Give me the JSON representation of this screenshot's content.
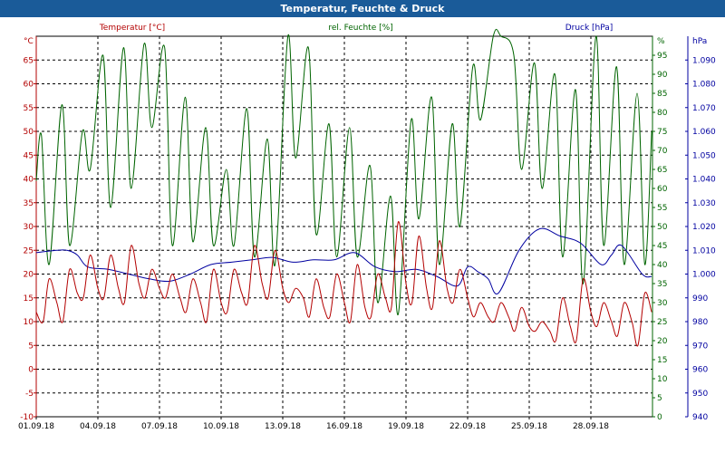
{
  "title": "Temperatur, Feuchte & Druck",
  "chart_data": {
    "type": "line",
    "colors": {
      "temperature": "#b30000",
      "humidity": "#006400",
      "pressure": "#0000a0",
      "title_bar": "#1a5b99"
    },
    "axes": {
      "temperature": {
        "label": "Temperatur [°C]",
        "unit": "°C",
        "ylim": [
          -10,
          70
        ],
        "ticks": [
          -10,
          -5,
          0,
          5,
          10,
          15,
          20,
          25,
          30,
          35,
          40,
          45,
          50,
          55,
          60,
          65
        ]
      },
      "humidity": {
        "label": "rel. Feuchte [%]",
        "unit": "%",
        "ylim": [
          0,
          100
        ],
        "ticks": [
          0,
          5,
          10,
          15,
          20,
          25,
          30,
          35,
          40,
          45,
          50,
          55,
          60,
          65,
          70,
          75,
          80,
          85,
          90,
          95
        ]
      },
      "pressure": {
        "label": "Druck [hPa]",
        "unit": "hPa",
        "ylim": [
          940,
          1100
        ],
        "ticks": [
          940,
          950,
          960,
          970,
          980,
          990,
          1000,
          1010,
          1020,
          1030,
          1040,
          1050,
          1060,
          1070,
          1080,
          1090
        ],
        "tick_labels": [
          "940",
          "950",
          "960",
          "970",
          "980",
          "990",
          "1.000",
          "1.010",
          "1.020",
          "1.030",
          "1.040",
          "1.050",
          "1.060",
          "1.070",
          "1.080",
          "1.090"
        ]
      }
    },
    "x": {
      "range": [
        "2018-09-01",
        "2018-10-01"
      ],
      "tick_dates": [
        "2018-09-01",
        "2018-09-04",
        "2018-09-07",
        "2018-09-10",
        "2018-09-13",
        "2018-09-16",
        "2018-09-19",
        "2018-09-22",
        "2018-09-25",
        "2018-09-28"
      ],
      "tick_labels": [
        "01.09.18",
        "04.09.18",
        "07.09.18",
        "10.09.18",
        "13.09.18",
        "16.09.18",
        "19.09.18",
        "22.09.18",
        "25.09.18",
        "28.09.18"
      ]
    },
    "grid": true,
    "series": [
      {
        "name": "Temperatur [°C]",
        "axis": "temperature",
        "points": [
          [
            "2018-09-01 00:00",
            12
          ],
          [
            "2018-09-01 08:00",
            10
          ],
          [
            "2018-09-01 15:00",
            19
          ],
          [
            "2018-09-02 00:00",
            14
          ],
          [
            "2018-09-02 07:00",
            10
          ],
          [
            "2018-09-02 15:00",
            21
          ],
          [
            "2018-09-03 00:00",
            16
          ],
          [
            "2018-09-03 07:00",
            15
          ],
          [
            "2018-09-03 15:00",
            24
          ],
          [
            "2018-09-04 00:00",
            17
          ],
          [
            "2018-09-04 07:00",
            15
          ],
          [
            "2018-09-04 15:00",
            24
          ],
          [
            "2018-09-05 00:00",
            17
          ],
          [
            "2018-09-05 07:00",
            14
          ],
          [
            "2018-09-05 15:00",
            26
          ],
          [
            "2018-09-06 00:00",
            18
          ],
          [
            "2018-09-06 07:00",
            15
          ],
          [
            "2018-09-06 15:00",
            21
          ],
          [
            "2018-09-07 00:00",
            17
          ],
          [
            "2018-09-07 07:00",
            15
          ],
          [
            "2018-09-07 15:00",
            20
          ],
          [
            "2018-09-08 00:00",
            15
          ],
          [
            "2018-09-08 07:00",
            12
          ],
          [
            "2018-09-08 15:00",
            19
          ],
          [
            "2018-09-09 00:00",
            14
          ],
          [
            "2018-09-09 07:00",
            10
          ],
          [
            "2018-09-09 15:00",
            21
          ],
          [
            "2018-09-10 00:00",
            14
          ],
          [
            "2018-09-10 07:00",
            12
          ],
          [
            "2018-09-10 15:00",
            21
          ],
          [
            "2018-09-11 00:00",
            16
          ],
          [
            "2018-09-11 07:00",
            14
          ],
          [
            "2018-09-11 15:00",
            26
          ],
          [
            "2018-09-12 00:00",
            18
          ],
          [
            "2018-09-12 07:00",
            15
          ],
          [
            "2018-09-12 15:00",
            25
          ],
          [
            "2018-09-13 00:00",
            17
          ],
          [
            "2018-09-13 07:00",
            14
          ],
          [
            "2018-09-13 15:00",
            17
          ],
          [
            "2018-09-14 00:00",
            15
          ],
          [
            "2018-09-14 07:00",
            11
          ],
          [
            "2018-09-14 15:00",
            19
          ],
          [
            "2018-09-15 00:00",
            13
          ],
          [
            "2018-09-15 07:00",
            11
          ],
          [
            "2018-09-15 15:00",
            20
          ],
          [
            "2018-09-16 00:00",
            14
          ],
          [
            "2018-09-16 07:00",
            10
          ],
          [
            "2018-09-16 15:00",
            22
          ],
          [
            "2018-09-17 00:00",
            13
          ],
          [
            "2018-09-17 07:00",
            11
          ],
          [
            "2018-09-17 15:00",
            20
          ],
          [
            "2018-09-18 00:00",
            15
          ],
          [
            "2018-09-18 07:00",
            13
          ],
          [
            "2018-09-18 15:00",
            31
          ],
          [
            "2018-09-19 00:00",
            18
          ],
          [
            "2018-09-19 07:00",
            14
          ],
          [
            "2018-09-19 15:00",
            28
          ],
          [
            "2018-09-20 00:00",
            17
          ],
          [
            "2018-09-20 07:00",
            13
          ],
          [
            "2018-09-20 15:00",
            27
          ],
          [
            "2018-09-21 00:00",
            17
          ],
          [
            "2018-09-21 07:00",
            14
          ],
          [
            "2018-09-21 15:00",
            21
          ],
          [
            "2018-09-22 00:00",
            15
          ],
          [
            "2018-09-22 07:00",
            11
          ],
          [
            "2018-09-22 15:00",
            14
          ],
          [
            "2018-09-23 00:00",
            11
          ],
          [
            "2018-09-23 07:00",
            10
          ],
          [
            "2018-09-23 15:00",
            14
          ],
          [
            "2018-09-24 00:00",
            11
          ],
          [
            "2018-09-24 07:00",
            8
          ],
          [
            "2018-09-24 15:00",
            13
          ],
          [
            "2018-09-25 00:00",
            9
          ],
          [
            "2018-09-25 07:00",
            8
          ],
          [
            "2018-09-25 15:00",
            10
          ],
          [
            "2018-09-26 00:00",
            8
          ],
          [
            "2018-09-26 07:00",
            6
          ],
          [
            "2018-09-26 15:00",
            15
          ],
          [
            "2018-09-27 00:00",
            9
          ],
          [
            "2018-09-27 07:00",
            6
          ],
          [
            "2018-09-27 15:00",
            19
          ],
          [
            "2018-09-28 00:00",
            12
          ],
          [
            "2018-09-28 07:00",
            9
          ],
          [
            "2018-09-28 15:00",
            14
          ],
          [
            "2018-09-29 00:00",
            10
          ],
          [
            "2018-09-29 07:00",
            7
          ],
          [
            "2018-09-29 15:00",
            14
          ],
          [
            "2018-09-30 00:00",
            10
          ],
          [
            "2018-09-30 07:00",
            5
          ],
          [
            "2018-09-30 15:00",
            16
          ],
          [
            "2018-09-30 23:00",
            12
          ]
        ]
      },
      {
        "name": "rel. Feuchte [%]",
        "axis": "humidity",
        "points": [
          [
            "2018-09-01 00:00",
            62
          ],
          [
            "2018-09-01 06:00",
            74
          ],
          [
            "2018-09-01 15:00",
            40
          ],
          [
            "2018-09-02 06:00",
            82
          ],
          [
            "2018-09-02 15:00",
            45
          ],
          [
            "2018-09-03 06:00",
            75
          ],
          [
            "2018-09-03 15:00",
            65
          ],
          [
            "2018-09-04 06:00",
            95
          ],
          [
            "2018-09-04 15:00",
            55
          ],
          [
            "2018-09-05 06:00",
            97
          ],
          [
            "2018-09-05 15:00",
            60
          ],
          [
            "2018-09-06 06:00",
            98
          ],
          [
            "2018-09-06 15:00",
            76
          ],
          [
            "2018-09-07 06:00",
            97
          ],
          [
            "2018-09-07 15:00",
            45
          ],
          [
            "2018-09-08 06:00",
            84
          ],
          [
            "2018-09-08 15:00",
            46
          ],
          [
            "2018-09-09 06:00",
            76
          ],
          [
            "2018-09-09 15:00",
            45
          ],
          [
            "2018-09-10 06:00",
            65
          ],
          [
            "2018-09-10 15:00",
            45
          ],
          [
            "2018-09-11 06:00",
            81
          ],
          [
            "2018-09-11 15:00",
            42
          ],
          [
            "2018-09-12 06:00",
            73
          ],
          [
            "2018-09-12 15:00",
            40
          ],
          [
            "2018-09-13 06:00",
            100
          ],
          [
            "2018-09-13 15:00",
            68
          ],
          [
            "2018-09-14 06:00",
            97
          ],
          [
            "2018-09-14 15:00",
            48
          ],
          [
            "2018-09-15 06:00",
            77
          ],
          [
            "2018-09-15 15:00",
            42
          ],
          [
            "2018-09-16 06:00",
            76
          ],
          [
            "2018-09-16 15:00",
            42
          ],
          [
            "2018-09-17 06:00",
            66
          ],
          [
            "2018-09-17 15:00",
            30
          ],
          [
            "2018-09-18 06:00",
            58
          ],
          [
            "2018-09-18 15:00",
            27
          ],
          [
            "2018-09-19 06:00",
            78
          ],
          [
            "2018-09-19 15:00",
            52
          ],
          [
            "2018-09-20 06:00",
            84
          ],
          [
            "2018-09-20 15:00",
            40
          ],
          [
            "2018-09-21 06:00",
            77
          ],
          [
            "2018-09-21 15:00",
            50
          ],
          [
            "2018-09-22 06:00",
            92
          ],
          [
            "2018-09-22 15:00",
            78
          ],
          [
            "2018-09-23 06:00",
            100
          ],
          [
            "2018-09-23 15:00",
            100
          ],
          [
            "2018-09-24 06:00",
            95
          ],
          [
            "2018-09-24 15:00",
            65
          ],
          [
            "2018-09-25 06:00",
            93
          ],
          [
            "2018-09-25 15:00",
            60
          ],
          [
            "2018-09-26 06:00",
            90
          ],
          [
            "2018-09-26 15:00",
            42
          ],
          [
            "2018-09-27 06:00",
            86
          ],
          [
            "2018-09-27 15:00",
            35
          ],
          [
            "2018-09-28 06:00",
            100
          ],
          [
            "2018-09-28 15:00",
            45
          ],
          [
            "2018-09-29 06:00",
            92
          ],
          [
            "2018-09-29 15:00",
            40
          ],
          [
            "2018-09-30 06:00",
            85
          ],
          [
            "2018-09-30 15:00",
            40
          ],
          [
            "2018-09-30 23:00",
            75
          ]
        ]
      },
      {
        "name": "Druck [hPa]",
        "axis": "pressure",
        "points": [
          [
            "2018-09-01 00:00",
            1009
          ],
          [
            "2018-09-02 00:00",
            1010
          ],
          [
            "2018-09-02 12:00",
            1010
          ],
          [
            "2018-09-03 00:00",
            1008
          ],
          [
            "2018-09-03 12:00",
            1003
          ],
          [
            "2018-09-04 12:00",
            1002
          ],
          [
            "2018-09-05 12:00",
            1000
          ],
          [
            "2018-09-06 12:00",
            998
          ],
          [
            "2018-09-07 12:00",
            997
          ],
          [
            "2018-09-08 12:00",
            1000
          ],
          [
            "2018-09-09 12:00",
            1004
          ],
          [
            "2018-09-10 12:00",
            1005
          ],
          [
            "2018-09-11 12:00",
            1006
          ],
          [
            "2018-09-12 12:00",
            1007
          ],
          [
            "2018-09-13 12:00",
            1005
          ],
          [
            "2018-09-14 12:00",
            1006
          ],
          [
            "2018-09-15 12:00",
            1006
          ],
          [
            "2018-09-16 12:00",
            1009
          ],
          [
            "2018-09-17 12:00",
            1003
          ],
          [
            "2018-09-18 12:00",
            1001
          ],
          [
            "2018-09-19 12:00",
            1002
          ],
          [
            "2018-09-20 12:00",
            999
          ],
          [
            "2018-09-21 12:00",
            995
          ],
          [
            "2018-09-22 00:00",
            1003
          ],
          [
            "2018-09-22 12:00",
            1001
          ],
          [
            "2018-09-23 00:00",
            998
          ],
          [
            "2018-09-23 12:00",
            992
          ],
          [
            "2018-09-24 12:00",
            1010
          ],
          [
            "2018-09-25 12:00",
            1019
          ],
          [
            "2018-09-26 12:00",
            1016
          ],
          [
            "2018-09-27 12:00",
            1013
          ],
          [
            "2018-09-28 12:00",
            1004
          ],
          [
            "2018-09-29 00:00",
            1008
          ],
          [
            "2018-09-29 12:00",
            1012
          ],
          [
            "2018-09-30 12:00",
            1000
          ],
          [
            "2018-09-30 23:00",
            999
          ]
        ]
      }
    ]
  }
}
